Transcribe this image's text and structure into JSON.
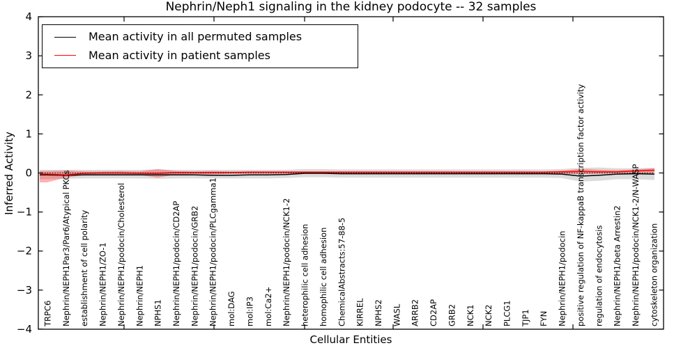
{
  "chart_data": {
    "type": "line",
    "title": "Nephrin/Neph1 signaling in the kidney podocyte -- 32 samples",
    "xlabel": "Cellular Entities",
    "ylabel": "Inferred Activity",
    "ylim": [
      -4,
      4
    ],
    "yticks": [
      4,
      3,
      2,
      1,
      0,
      -1,
      -2,
      -3,
      -4
    ],
    "ytick_labels": [
      "4",
      "3",
      "2",
      "1",
      "0",
      "−1",
      "−2",
      "−3",
      "−4"
    ],
    "grid": false,
    "legend_position": "upper left",
    "zero_line": {
      "value": 0,
      "style": "dotted",
      "color": "#000000"
    },
    "categories": [
      "TRPC6",
      "Nephrin/NEPH1Par3/Par6/Atypical PKCs",
      "establishment of cell polarity",
      "Nephrin/NEPH1/ZO-1",
      "Nephrin/NEPH1/podocin/Cholesterol",
      "Nephrin/NEPH1",
      "NPHS1",
      "Nephrin/NEPH1/podocin/CD2AP",
      "Nephrin/NEPH1/podocin/GRB2",
      "Nephrin/NEPH1/podocin/PLCgamma1",
      "mol:DAG",
      "mol:IP3",
      "mol:Ca2+",
      "Nephrin/NEPH1/podocin/NCK1-2",
      "heterophilic cell adhesion",
      "homophilic cell adhesion",
      "ChemicalAbstracts:57-88-5",
      "KIRREL",
      "NPHS2",
      "WASL",
      "ARRB2",
      "CD2AP",
      "GRB2",
      "NCK1",
      "NCK2",
      "PLCG1",
      "TJP1",
      "FYN",
      "Nephrin/NEPH1/podocin",
      "positive regulation of NF-kappaB transcription factor activity",
      "regulation of endocytosis",
      "Nephrin/NEPH1/beta Arrestin2",
      "Nephrin/NEPH1/podocin/NCK1-2/N-WASP",
      "cytoskeleton organization"
    ],
    "series": [
      {
        "name": "Mean activity in all permuted samples",
        "color": "#000000",
        "band_color": "#000000",
        "band_opacity": 0.14,
        "values": [
          -0.05,
          -0.06,
          -0.05,
          -0.05,
          -0.05,
          -0.05,
          -0.05,
          -0.05,
          -0.05,
          -0.06,
          -0.06,
          -0.05,
          -0.05,
          -0.04,
          -0.01,
          -0.01,
          -0.02,
          -0.02,
          -0.02,
          -0.02,
          -0.02,
          -0.02,
          -0.02,
          -0.02,
          -0.02,
          -0.02,
          -0.02,
          -0.02,
          -0.03,
          -0.08,
          -0.06,
          -0.03,
          -0.02,
          -0.03
        ],
        "band_upper": [
          0.08,
          0.08,
          0.08,
          0.08,
          0.08,
          0.08,
          0.09,
          0.08,
          0.08,
          0.08,
          0.08,
          0.08,
          0.08,
          0.08,
          0.1,
          0.1,
          0.09,
          0.09,
          0.09,
          0.09,
          0.09,
          0.09,
          0.09,
          0.09,
          0.09,
          0.09,
          0.09,
          0.09,
          0.1,
          0.13,
          0.14,
          0.12,
          0.12,
          0.13
        ],
        "band_lower": [
          -0.16,
          -0.15,
          -0.14,
          -0.14,
          -0.14,
          -0.14,
          -0.15,
          -0.14,
          -0.14,
          -0.14,
          -0.14,
          -0.14,
          -0.14,
          -0.13,
          -0.11,
          -0.11,
          -0.12,
          -0.12,
          -0.12,
          -0.12,
          -0.12,
          -0.12,
          -0.12,
          -0.12,
          -0.12,
          -0.12,
          -0.12,
          -0.12,
          -0.13,
          -0.22,
          -0.2,
          -0.16,
          -0.16,
          -0.18
        ]
      },
      {
        "name": "Mean activity in patient samples",
        "color": "#ff0000",
        "band_color": "#ff0000",
        "band_opacity": 0.3,
        "values": [
          -0.03,
          -0.05,
          -0.01,
          0,
          0,
          -0.01,
          -0.01,
          0.01,
          0.01,
          0.01,
          0.01,
          0.02,
          0.02,
          0.02,
          0.02,
          0.02,
          0.02,
          0.02,
          0.02,
          0.02,
          0.02,
          0.02,
          0.02,
          0.02,
          0.02,
          0.02,
          0.02,
          0.02,
          0.03,
          0.04,
          0.03,
          0.03,
          0.05,
          0.07
        ],
        "band_upper": [
          0.05,
          0.06,
          0.04,
          0.04,
          0.05,
          0.04,
          0.1,
          0.05,
          0.04,
          0.05,
          0.04,
          0.04,
          0.04,
          0.04,
          0.04,
          0.04,
          0.04,
          0.04,
          0.04,
          0.04,
          0.04,
          0.04,
          0.04,
          0.04,
          0.04,
          0.04,
          0.04,
          0.04,
          0.06,
          0.1,
          0.08,
          0.07,
          0.09,
          0.12
        ],
        "band_lower": [
          -0.24,
          -0.12,
          -0.05,
          -0.04,
          -0.05,
          -0.05,
          -0.12,
          -0.04,
          -0.03,
          -0.04,
          -0.02,
          -0.02,
          -0.02,
          -0.02,
          -0.01,
          -0.01,
          -0.01,
          -0.01,
          -0.01,
          -0.01,
          -0.01,
          -0.01,
          -0.01,
          -0.01,
          -0.01,
          -0.01,
          -0.01,
          -0.01,
          -0.02,
          -0.03,
          -0.02,
          -0.01,
          0,
          0
        ]
      }
    ]
  },
  "legend": {
    "entries": [
      {
        "label": "Mean activity in all permuted samples",
        "color": "#000000"
      },
      {
        "label": "Mean activity in patient samples",
        "color": "#ff0000"
      }
    ]
  }
}
